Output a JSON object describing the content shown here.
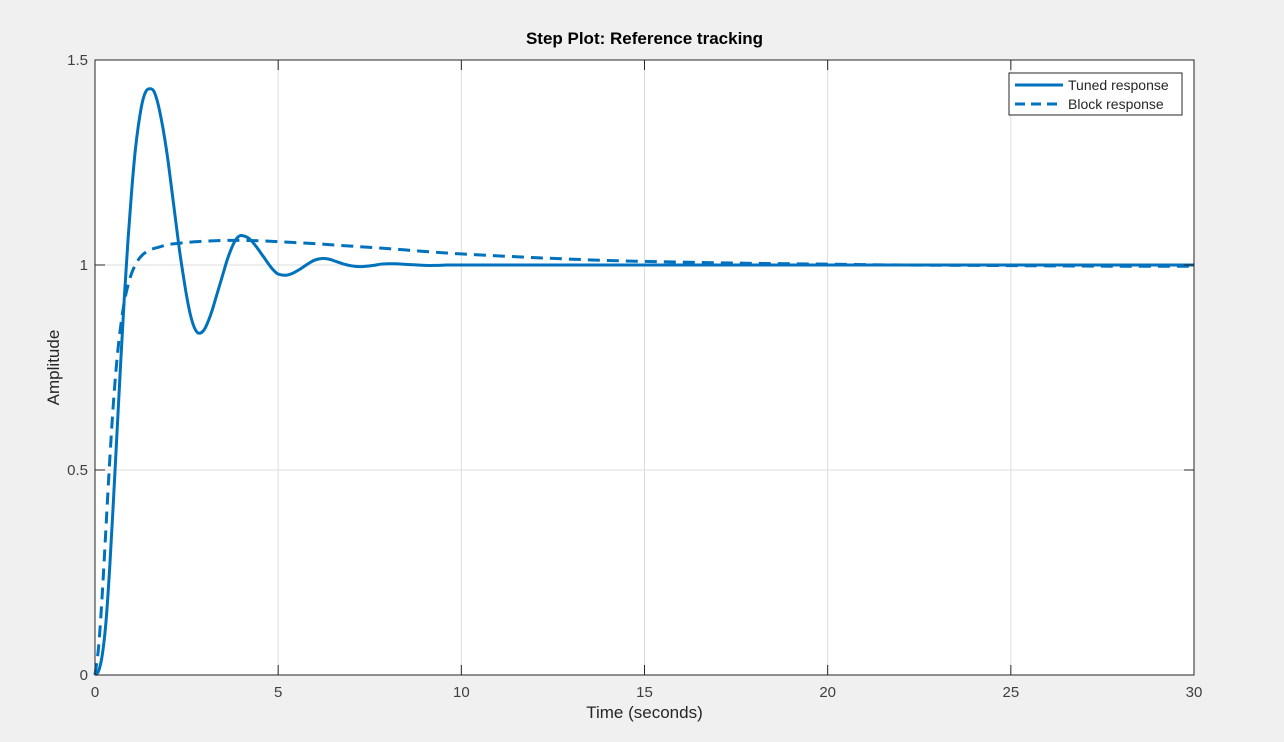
{
  "chart_data": {
    "type": "line",
    "title": "Step Plot: Reference tracking",
    "xlabel": "Time (seconds)",
    "ylabel": "Amplitude",
    "xlim": [
      0,
      30
    ],
    "ylim": [
      0,
      1.5
    ],
    "x_ticks": [
      0,
      5,
      10,
      15,
      20,
      25,
      30
    ],
    "y_ticks": [
      0,
      0.5,
      1,
      1.5
    ],
    "x_tick_labels": [
      "0",
      "5",
      "10",
      "15",
      "20",
      "25",
      "30"
    ],
    "y_tick_labels": [
      "0",
      "0.5",
      "1",
      "1.5"
    ],
    "grid": true,
    "legend_position": "top-right",
    "series": [
      {
        "name": "Tuned response",
        "style": "solid",
        "color": "#0072bd",
        "x": [
          0,
          0.1,
          0.2,
          0.3,
          0.4,
          0.5,
          0.6,
          0.7,
          0.8,
          0.9,
          1.0,
          1.1,
          1.2,
          1.3,
          1.4,
          1.5,
          1.6,
          1.7,
          1.8,
          1.9,
          2.0,
          2.1,
          2.2,
          2.3,
          2.4,
          2.5,
          2.6,
          2.7,
          2.8,
          2.9,
          3.0,
          3.1,
          3.2,
          3.3,
          3.4,
          3.5,
          3.6,
          3.7,
          3.8,
          3.9,
          4.0,
          4.2,
          4.4,
          4.6,
          4.8,
          4.9,
          5.0,
          5.2,
          5.4,
          5.6,
          5.8,
          6.0,
          6.2,
          6.4,
          6.6,
          6.8,
          7.0,
          7.2,
          7.4,
          7.6,
          7.8,
          8.0,
          8.2,
          8.4,
          8.6,
          8.8,
          9.0,
          9.3,
          9.6,
          9.9,
          10.2,
          10.5,
          10.8,
          11.2,
          11.6,
          12.0,
          12.5,
          13.0,
          14.0,
          15.0,
          16.0,
          18.0,
          20.0,
          22.0,
          25.0,
          28.0,
          30.0
        ],
        "values": [
          0,
          0.01,
          0.05,
          0.13,
          0.26,
          0.42,
          0.59,
          0.76,
          0.92,
          1.06,
          1.18,
          1.28,
          1.35,
          1.4,
          1.425,
          1.43,
          1.425,
          1.4,
          1.36,
          1.31,
          1.25,
          1.18,
          1.11,
          1.04,
          0.98,
          0.925,
          0.88,
          0.85,
          0.835,
          0.835,
          0.845,
          0.865,
          0.89,
          0.92,
          0.95,
          0.98,
          1.01,
          1.035,
          1.055,
          1.068,
          1.072,
          1.065,
          1.045,
          1.02,
          0.995,
          0.985,
          0.978,
          0.975,
          0.98,
          0.99,
          1.002,
          1.012,
          1.016,
          1.014,
          1.008,
          1.002,
          0.998,
          0.996,
          0.997,
          0.999,
          1.002,
          1.003,
          1.003,
          1.002,
          1.001,
          1.0,
          0.999,
          0.999,
          1.0,
          1.0,
          1.0,
          1.0,
          1.0,
          1.0,
          1.0,
          1.0,
          1.0,
          1.0,
          1.0,
          1.0,
          1.0,
          1.0,
          1.0,
          1.0,
          1.0,
          1.0,
          1.0
        ]
      },
      {
        "name": "Block response",
        "style": "dashed",
        "color": "#0072bd",
        "x": [
          0,
          0.1,
          0.2,
          0.3,
          0.4,
          0.5,
          0.6,
          0.7,
          0.8,
          0.9,
          1.0,
          1.1,
          1.2,
          1.3,
          1.4,
          1.5,
          1.6,
          1.8,
          2.0,
          2.5,
          3.0,
          3.5,
          4.0,
          4.5,
          5.0,
          6.0,
          7.0,
          8.0,
          9.0,
          10.0,
          12.0,
          14.0,
          16.0,
          18.0,
          20.0,
          22.0,
          24.0,
          26.0,
          28.0,
          30.0
        ],
        "values": [
          0,
          0.07,
          0.2,
          0.36,
          0.52,
          0.66,
          0.77,
          0.85,
          0.91,
          0.95,
          0.98,
          1.0,
          1.015,
          1.025,
          1.032,
          1.037,
          1.04,
          1.045,
          1.05,
          1.055,
          1.058,
          1.06,
          1.06,
          1.059,
          1.057,
          1.052,
          1.046,
          1.04,
          1.033,
          1.027,
          1.018,
          1.011,
          1.007,
          1.004,
          1.002,
          1.0,
          0.999,
          0.998,
          0.997,
          0.997
        ]
      }
    ]
  }
}
